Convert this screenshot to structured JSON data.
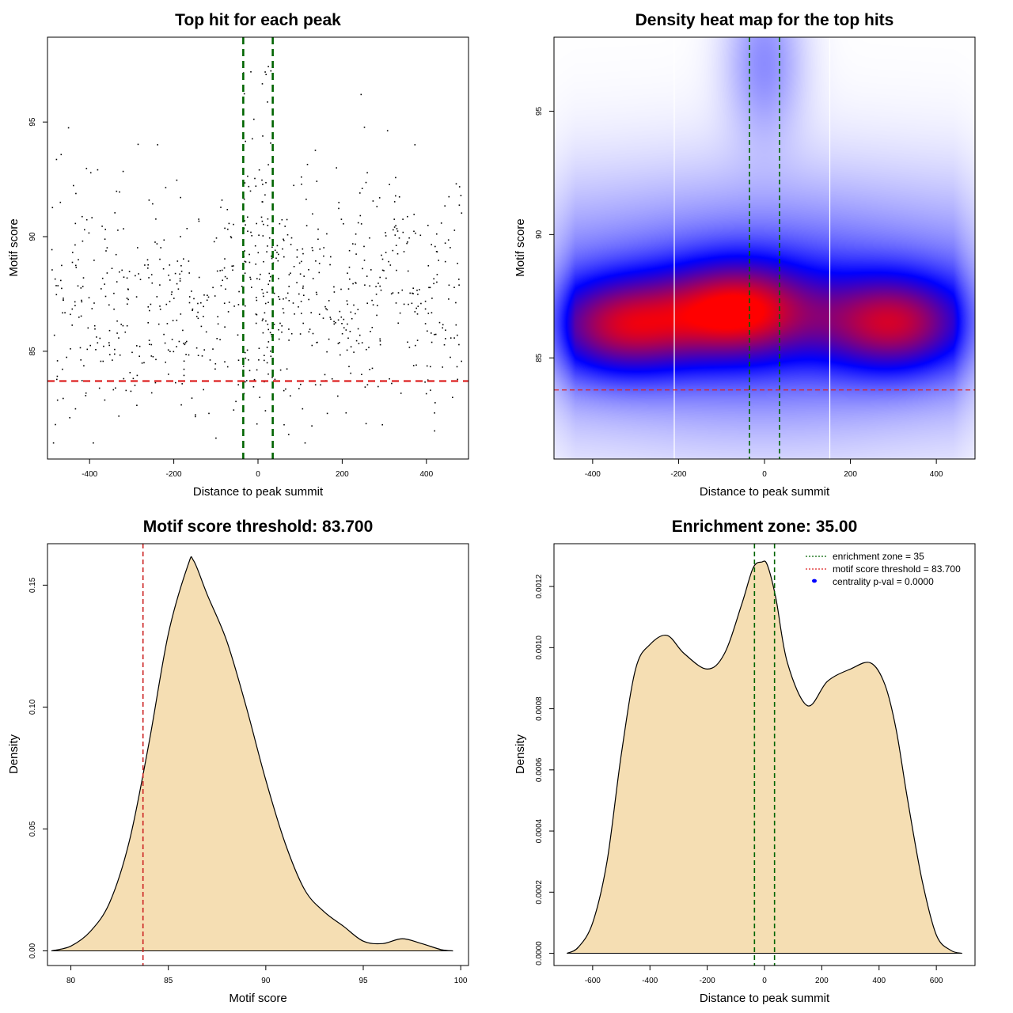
{
  "chart_data": [
    {
      "type": "scatter",
      "title": "Top hit for each peak",
      "xlabel": "Distance to peak summit",
      "ylabel": "Motif score",
      "xlim": [
        -500,
        500
      ],
      "ylim": [
        80.3,
        98.7
      ],
      "xticks": [
        -400,
        -200,
        0,
        200,
        400
      ],
      "yticks": [
        85,
        90,
        95
      ],
      "vlines": [
        -35,
        35
      ],
      "hline": 83.7,
      "line_colors": {
        "vertical": "#006400",
        "horizontal": "#dd2222"
      },
      "point_color": "#000000",
      "generator": {
        "count": 760,
        "seed": 7,
        "x_range": [
          -490,
          490
        ],
        "score_mean": 87.3,
        "score_sd": 2.6,
        "central_width": 35,
        "central_extra": 60
      },
      "grid": false
    },
    {
      "type": "heatmap",
      "title": "Density heat map for the top hits",
      "xlabel": "Distance to peak summit",
      "ylabel": "Motif score",
      "xlim": [
        -490,
        490
      ],
      "ylim": [
        80.9,
        98.0
      ],
      "xticks": [
        -400,
        -200,
        0,
        200,
        400
      ],
      "yticks": [
        85,
        90,
        95
      ],
      "vlines": [
        -35,
        35
      ],
      "white_lines": [
        -210,
        152
      ],
      "hline": 83.7,
      "color_scale": [
        "#ffffff",
        "#0000ff",
        "#ff0000"
      ],
      "density_peaks": [
        {
          "x": -330,
          "y": 86.3,
          "weight": 1.0
        },
        {
          "x": -60,
          "y": 86.9,
          "weight": 1.1
        },
        {
          "x": 300,
          "y": 86.4,
          "weight": 1.0
        }
      ],
      "grid": false
    },
    {
      "type": "area",
      "title": "Motif score threshold: 83.700",
      "xlabel": "Motif score",
      "ylabel": "Density",
      "xlim": [
        78.8,
        100.4
      ],
      "ylim": [
        -0.006,
        0.167
      ],
      "xticks": [
        80,
        85,
        90,
        95,
        100
      ],
      "yticks": [
        0.0,
        0.05,
        0.1,
        0.15
      ],
      "ytick_labels": [
        "0.00",
        "0.05",
        "0.10",
        "0.15"
      ],
      "vline": 83.7,
      "vline_color": "#cc2222",
      "fill_color": "#f5deb3",
      "x": [
        79,
        80,
        81,
        82,
        83,
        84,
        85,
        86,
        86.3,
        87,
        88,
        89,
        90,
        91,
        92,
        93,
        94,
        95,
        96,
        97,
        98,
        99,
        99.6
      ],
      "y": [
        0.0,
        0.002,
        0.008,
        0.02,
        0.045,
        0.085,
        0.13,
        0.158,
        0.16,
        0.146,
        0.127,
        0.1,
        0.07,
        0.044,
        0.025,
        0.016,
        0.01,
        0.004,
        0.003,
        0.005,
        0.003,
        0.0005,
        0.0
      ],
      "grid": false
    },
    {
      "type": "area",
      "title": "Enrichment zone: 35.00",
      "xlabel": "Distance to peak summit",
      "ylabel": "Density",
      "xlim": [
        -735,
        735
      ],
      "ylim": [
        -4e-05,
        0.00134
      ],
      "xticks": [
        -600,
        -400,
        -200,
        0,
        200,
        400,
        600
      ],
      "yticks": [
        0,
        0.0002,
        0.0004,
        0.0006,
        0.0008,
        0.001,
        0.0012
      ],
      "ytick_labels": [
        "0.0000",
        "0.0002",
        "0.0004",
        "0.0006",
        "0.0008",
        "0.0010",
        "0.0012"
      ],
      "vlines": [
        -35,
        35
      ],
      "vline_color": "#006400",
      "fill_color": "#f5deb3",
      "x": [
        -690,
        -650,
        -600,
        -550,
        -500,
        -450,
        -400,
        -340,
        -280,
        -200,
        -140,
        -80,
        -40,
        -10,
        10,
        40,
        80,
        150,
        220,
        300,
        370,
        420,
        460,
        500,
        550,
        600,
        650,
        690
      ],
      "y": [
        0.0,
        2e-05,
        0.0001,
        0.0003,
        0.00065,
        0.00093,
        0.00101,
        0.00104,
        0.00098,
        0.00093,
        0.00098,
        0.00114,
        0.00126,
        0.00128,
        0.00127,
        0.00116,
        0.00095,
        0.00081,
        0.00089,
        0.00093,
        0.00095,
        0.00088,
        0.00073,
        0.0005,
        0.00024,
        6e-05,
        1e-05,
        0.0
      ],
      "legend": {
        "placement": "top-right",
        "entries": [
          {
            "label": "enrichment zone = 35",
            "color": "#006400",
            "style": "dotted-line"
          },
          {
            "label": "motif score threshold = 83.700",
            "color": "#dd2222",
            "style": "dotted-line"
          },
          {
            "label": "centrality p-val = 0.0000",
            "color": "#0000ff",
            "style": "point"
          }
        ]
      },
      "grid": false
    }
  ]
}
